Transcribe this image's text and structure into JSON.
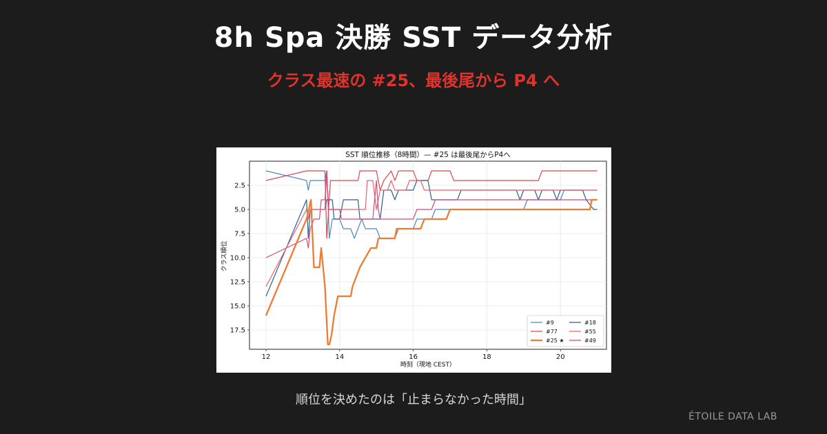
{
  "header": {
    "title": "8h Spa 決勝 SST データ分析",
    "subtitle": "クラス最速の #25、最後尾から P4 へ"
  },
  "caption": "順位を決めたのは「止まらなかった時間」",
  "brand": "ÉTOILE DATA LAB",
  "chart_data": {
    "type": "line",
    "title": "SST 順位推移（8時間）— #25 は最後尾からP4へ",
    "xlabel": "時刻（現地 CEST）",
    "ylabel": "クラス順位",
    "xlim": [
      11.55,
      21.25
    ],
    "ylim": [
      19.5,
      0
    ],
    "y_inverted": true,
    "xticks": [
      12,
      14,
      16,
      18,
      20
    ],
    "yticks": [
      2.5,
      5.0,
      7.5,
      10.0,
      12.5,
      15.0,
      17.5
    ],
    "grid": true,
    "legend_position": "bottom-right",
    "series": [
      {
        "name": "#9",
        "color": "#4a86c5",
        "width": 1.2,
        "points": [
          [
            12,
            1
          ],
          [
            13.1,
            2
          ],
          [
            13.15,
            3
          ],
          [
            13.2,
            2
          ],
          [
            13.6,
            2
          ],
          [
            13.65,
            1
          ],
          [
            13.72,
            8
          ],
          [
            13.8,
            6
          ],
          [
            14.0,
            6
          ],
          [
            14.1,
            7
          ],
          [
            14.3,
            7
          ],
          [
            14.4,
            8
          ],
          [
            14.5,
            7
          ],
          [
            14.6,
            6
          ],
          [
            14.7,
            7
          ],
          [
            15.0,
            7
          ],
          [
            15.1,
            8
          ],
          [
            15.5,
            8
          ],
          [
            15.6,
            7
          ],
          [
            16.0,
            7
          ],
          [
            16.1,
            6
          ],
          [
            16.5,
            6
          ],
          [
            16.6,
            5
          ],
          [
            17.5,
            5
          ],
          [
            19.0,
            5
          ],
          [
            19.1,
            4
          ],
          [
            20.0,
            4
          ],
          [
            20.1,
            3
          ],
          [
            21.0,
            3
          ]
        ]
      },
      {
        "name": "#77",
        "color": "#e0434b",
        "width": 1.2,
        "points": [
          [
            12,
            2
          ],
          [
            13.1,
            1
          ],
          [
            13.6,
            1
          ],
          [
            13.65,
            8
          ],
          [
            13.75,
            2
          ],
          [
            14.5,
            2
          ],
          [
            14.55,
            1
          ],
          [
            15.0,
            1
          ],
          [
            15.1,
            3
          ],
          [
            15.2,
            2
          ],
          [
            15.4,
            1
          ],
          [
            15.5,
            2
          ],
          [
            15.6,
            1
          ],
          [
            16.0,
            1
          ],
          [
            16.1,
            2
          ],
          [
            16.4,
            2
          ],
          [
            16.5,
            1
          ],
          [
            17.0,
            1
          ],
          [
            17.1,
            2
          ],
          [
            19.4,
            2
          ],
          [
            19.5,
            1
          ],
          [
            21.0,
            1
          ]
        ]
      },
      {
        "name": "#25 ★",
        "color": "#f07b30",
        "width": 2.3,
        "points": [
          [
            12,
            16
          ],
          [
            13.1,
            6
          ],
          [
            13.22,
            4
          ],
          [
            13.3,
            11
          ],
          [
            13.45,
            11
          ],
          [
            13.5,
            9
          ],
          [
            13.6,
            13
          ],
          [
            13.68,
            19
          ],
          [
            13.72,
            19
          ],
          [
            13.78,
            18
          ],
          [
            13.85,
            16
          ],
          [
            13.9,
            15
          ],
          [
            13.95,
            14
          ],
          [
            14.3,
            14
          ],
          [
            14.35,
            13
          ],
          [
            14.45,
            12
          ],
          [
            14.55,
            11
          ],
          [
            14.7,
            10
          ],
          [
            14.85,
            9
          ],
          [
            15.0,
            9
          ],
          [
            15.05,
            8
          ],
          [
            15.5,
            8
          ],
          [
            15.55,
            7
          ],
          [
            16.2,
            7
          ],
          [
            16.3,
            6
          ],
          [
            16.9,
            6
          ],
          [
            17.0,
            5
          ],
          [
            18.0,
            5
          ],
          [
            20.8,
            5
          ],
          [
            20.85,
            4
          ],
          [
            21.0,
            4
          ]
        ]
      },
      {
        "name": "#18",
        "color": "#2e5e8e",
        "width": 1.2,
        "points": [
          [
            12,
            14
          ],
          [
            13.1,
            4
          ],
          [
            13.15,
            8
          ],
          [
            13.2,
            5
          ],
          [
            13.6,
            5
          ],
          [
            13.65,
            4
          ],
          [
            13.8,
            4
          ],
          [
            13.85,
            6
          ],
          [
            14.0,
            6
          ],
          [
            14.1,
            4
          ],
          [
            14.5,
            4
          ],
          [
            14.55,
            6
          ],
          [
            15.1,
            6
          ],
          [
            15.2,
            3
          ],
          [
            15.4,
            3
          ],
          [
            15.5,
            4
          ],
          [
            15.6,
            3
          ],
          [
            16.0,
            3
          ],
          [
            16.1,
            2
          ],
          [
            16.4,
            2
          ],
          [
            16.5,
            4
          ],
          [
            17.2,
            4
          ],
          [
            17.3,
            3
          ],
          [
            18.8,
            3
          ],
          [
            18.9,
            4
          ],
          [
            19.0,
            3
          ],
          [
            19.3,
            3
          ],
          [
            19.4,
            4
          ],
          [
            19.5,
            3
          ],
          [
            19.8,
            3
          ],
          [
            19.9,
            4
          ],
          [
            20.0,
            3
          ],
          [
            20.6,
            3
          ],
          [
            20.7,
            4
          ],
          [
            20.9,
            5
          ],
          [
            21.0,
            5
          ]
        ]
      },
      {
        "name": "#55",
        "color": "#e8626a",
        "width": 1.2,
        "points": [
          [
            12,
            13
          ],
          [
            13.1,
            5
          ],
          [
            13.15,
            6
          ],
          [
            13.2,
            5
          ],
          [
            13.6,
            5
          ],
          [
            13.65,
            1
          ],
          [
            13.7,
            5
          ],
          [
            14.7,
            5
          ],
          [
            14.75,
            2
          ],
          [
            14.9,
            2
          ],
          [
            15.0,
            5
          ],
          [
            15.1,
            3
          ],
          [
            15.3,
            3
          ],
          [
            15.4,
            2
          ],
          [
            15.5,
            3
          ],
          [
            15.8,
            3
          ],
          [
            15.9,
            2
          ],
          [
            16.2,
            2
          ],
          [
            16.3,
            3
          ],
          [
            18.5,
            3
          ],
          [
            18.6,
            3
          ],
          [
            20.9,
            3
          ],
          [
            21.0,
            3
          ]
        ]
      },
      {
        "name": "#49",
        "color": "#d8467a",
        "width": 1.2,
        "points": [
          [
            12,
            10
          ],
          [
            13.1,
            8
          ],
          [
            13.15,
            9
          ],
          [
            13.2,
            7
          ],
          [
            13.3,
            6
          ],
          [
            13.45,
            6
          ],
          [
            13.5,
            4
          ],
          [
            13.6,
            4
          ],
          [
            13.65,
            1
          ],
          [
            13.7,
            5
          ],
          [
            14.0,
            5
          ],
          [
            14.05,
            6
          ],
          [
            14.9,
            6
          ],
          [
            15.0,
            2
          ],
          [
            15.05,
            5
          ],
          [
            15.1,
            6
          ],
          [
            16.0,
            6
          ],
          [
            16.1,
            5
          ],
          [
            16.5,
            5
          ],
          [
            16.6,
            4
          ],
          [
            21.0,
            4
          ]
        ]
      }
    ]
  }
}
